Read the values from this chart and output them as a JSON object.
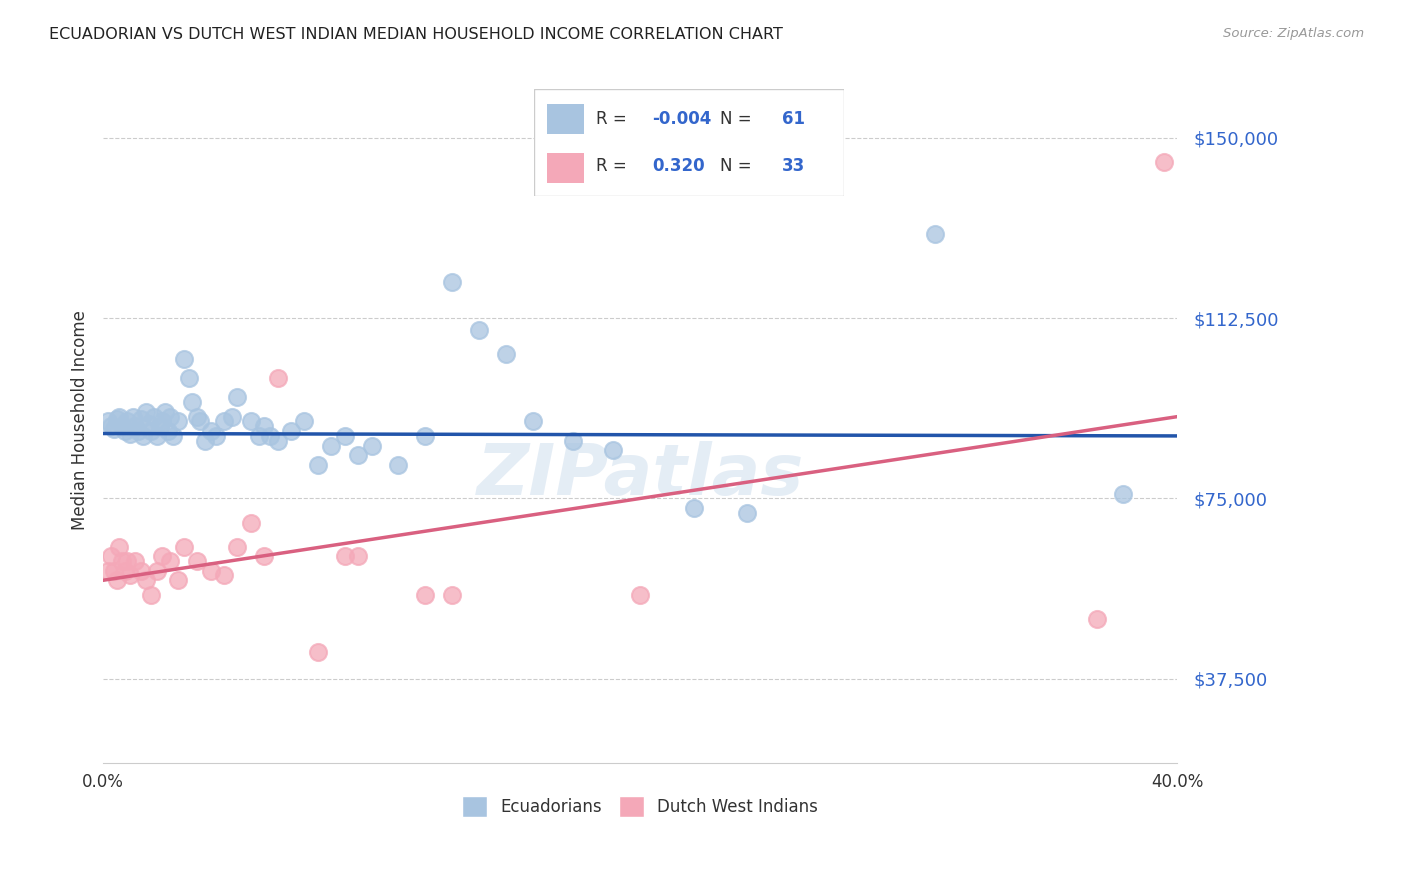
{
  "title": "ECUADORIAN VS DUTCH WEST INDIAN MEDIAN HOUSEHOLD INCOME CORRELATION CHART",
  "source": "Source: ZipAtlas.com",
  "ylabel": "Median Household Income",
  "xlim": [
    0.0,
    0.4
  ],
  "ylim": [
    20000,
    162500
  ],
  "yticks": [
    37500,
    75000,
    112500,
    150000
  ],
  "ytick_labels": [
    "$37,500",
    "$75,000",
    "$112,500",
    "$150,000"
  ],
  "xticks": [
    0.0,
    0.08,
    0.16,
    0.24,
    0.32,
    0.4
  ],
  "xtick_labels": [
    "0.0%",
    "",
    "",
    "",
    "",
    "40.0%"
  ],
  "legend_R1": "-0.004",
  "legend_N1": "61",
  "legend_R2": "0.320",
  "legend_N2": "33",
  "blue_color": "#a8c4e0",
  "pink_color": "#f4a8b8",
  "blue_line_color": "#2255aa",
  "pink_line_color": "#d96080",
  "watermark": "ZIPatlas",
  "blue_line_y0": 88500,
  "blue_line_y1": 88000,
  "pink_line_y0": 58000,
  "pink_line_y1": 92000,
  "blue_scatter": [
    [
      0.002,
      91000
    ],
    [
      0.003,
      90000
    ],
    [
      0.004,
      89500
    ],
    [
      0.005,
      91500
    ],
    [
      0.006,
      92000
    ],
    [
      0.007,
      90000
    ],
    [
      0.008,
      89000
    ],
    [
      0.009,
      91000
    ],
    [
      0.01,
      88500
    ],
    [
      0.011,
      92000
    ],
    [
      0.012,
      90000
    ],
    [
      0.013,
      89000
    ],
    [
      0.014,
      91500
    ],
    [
      0.015,
      88000
    ],
    [
      0.016,
      93000
    ],
    [
      0.017,
      90500
    ],
    [
      0.018,
      89000
    ],
    [
      0.019,
      92000
    ],
    [
      0.02,
      88000
    ],
    [
      0.021,
      90000
    ],
    [
      0.022,
      91000
    ],
    [
      0.023,
      93000
    ],
    [
      0.024,
      89000
    ],
    [
      0.025,
      92000
    ],
    [
      0.026,
      88000
    ],
    [
      0.028,
      91000
    ],
    [
      0.03,
      104000
    ],
    [
      0.032,
      100000
    ],
    [
      0.033,
      95000
    ],
    [
      0.035,
      92000
    ],
    [
      0.036,
      91000
    ],
    [
      0.038,
      87000
    ],
    [
      0.04,
      89000
    ],
    [
      0.042,
      88000
    ],
    [
      0.045,
      91000
    ],
    [
      0.048,
      92000
    ],
    [
      0.05,
      96000
    ],
    [
      0.055,
      91000
    ],
    [
      0.058,
      88000
    ],
    [
      0.06,
      90000
    ],
    [
      0.062,
      88000
    ],
    [
      0.065,
      87000
    ],
    [
      0.07,
      89000
    ],
    [
      0.075,
      91000
    ],
    [
      0.08,
      82000
    ],
    [
      0.085,
      86000
    ],
    [
      0.09,
      88000
    ],
    [
      0.095,
      84000
    ],
    [
      0.1,
      86000
    ],
    [
      0.11,
      82000
    ],
    [
      0.12,
      88000
    ],
    [
      0.13,
      120000
    ],
    [
      0.14,
      110000
    ],
    [
      0.15,
      105000
    ],
    [
      0.16,
      91000
    ],
    [
      0.175,
      87000
    ],
    [
      0.19,
      85000
    ],
    [
      0.22,
      73000
    ],
    [
      0.24,
      72000
    ],
    [
      0.31,
      130000
    ],
    [
      0.38,
      76000
    ]
  ],
  "pink_scatter": [
    [
      0.002,
      60000
    ],
    [
      0.003,
      63000
    ],
    [
      0.004,
      60000
    ],
    [
      0.005,
      58000
    ],
    [
      0.006,
      65000
    ],
    [
      0.007,
      62000
    ],
    [
      0.008,
      60000
    ],
    [
      0.009,
      62000
    ],
    [
      0.01,
      59000
    ],
    [
      0.012,
      62000
    ],
    [
      0.014,
      60000
    ],
    [
      0.016,
      58000
    ],
    [
      0.018,
      55000
    ],
    [
      0.02,
      60000
    ],
    [
      0.022,
      63000
    ],
    [
      0.025,
      62000
    ],
    [
      0.028,
      58000
    ],
    [
      0.03,
      65000
    ],
    [
      0.035,
      62000
    ],
    [
      0.04,
      60000
    ],
    [
      0.045,
      59000
    ],
    [
      0.05,
      65000
    ],
    [
      0.055,
      70000
    ],
    [
      0.06,
      63000
    ],
    [
      0.065,
      100000
    ],
    [
      0.08,
      43000
    ],
    [
      0.09,
      63000
    ],
    [
      0.095,
      63000
    ],
    [
      0.12,
      55000
    ],
    [
      0.13,
      55000
    ],
    [
      0.2,
      55000
    ],
    [
      0.37,
      50000
    ],
    [
      0.395,
      145000
    ]
  ]
}
